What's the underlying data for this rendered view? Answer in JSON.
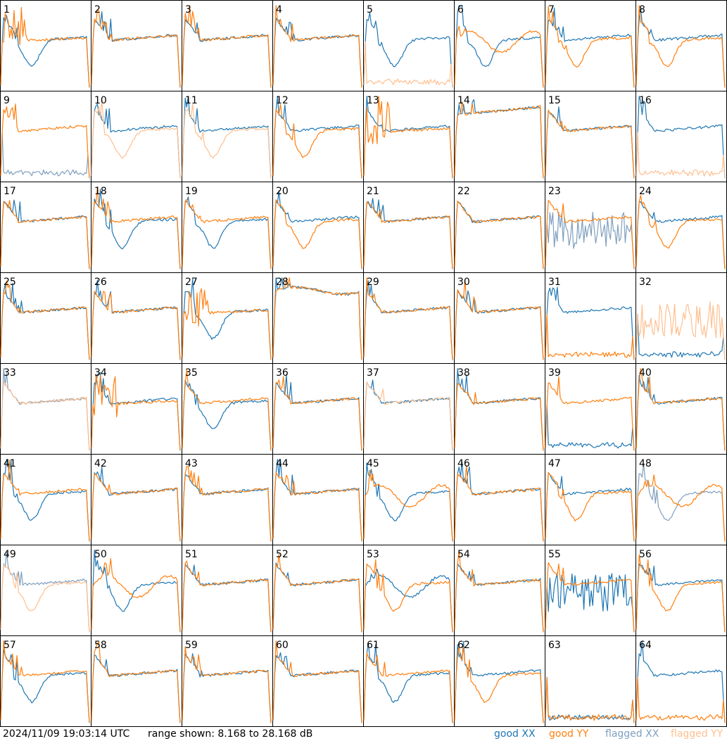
{
  "timestamp": "2024/11/09 19:03:14 UTC",
  "range_text": "range shown: 8.168 to 28.168 dB",
  "legend": {
    "good_xx": "good XX",
    "good_yy": "good YY",
    "flagged_xx": "flagged XX",
    "flagged_yy": "flagged YY"
  },
  "colors": {
    "good_xx": "#1f77b4",
    "good_yy": "#ff7f0e",
    "flagged_xx": "#7f9fbf",
    "flagged_yy": "#ffbf8f",
    "frame": "#000000",
    "background": "#ffffff"
  },
  "chart_data": {
    "type": "line",
    "layout": "8x8 grid of small multiples",
    "range_db": [
      8.168,
      28.168
    ],
    "panels": [
      {
        "label": "1",
        "xx": "good",
        "yy": "good",
        "xx_shape": "dip",
        "yy_shape": "spiky"
      },
      {
        "label": "2",
        "xx": "good",
        "yy": "good",
        "xx_shape": "normal",
        "yy_shape": "normal"
      },
      {
        "label": "3",
        "xx": "good",
        "yy": "good",
        "xx_shape": "normal",
        "yy_shape": "normal"
      },
      {
        "label": "4",
        "xx": "good",
        "yy": "good",
        "xx_shape": "normal",
        "yy_shape": "normal"
      },
      {
        "label": "5",
        "xx": "good",
        "yy": "flagged",
        "xx_shape": "dip",
        "yy_shape": "low"
      },
      {
        "label": "6",
        "xx": "good",
        "yy": "good",
        "xx_shape": "dip",
        "yy_shape": "wave"
      },
      {
        "label": "7",
        "xx": "good",
        "yy": "good",
        "xx_shape": "normal",
        "yy_shape": "dip"
      },
      {
        "label": "8",
        "xx": "good",
        "yy": "good",
        "xx_shape": "normal",
        "yy_shape": "dip"
      },
      {
        "label": "9",
        "xx": "flagged",
        "yy": "good",
        "xx_shape": "low",
        "yy_shape": "normal"
      },
      {
        "label": "10",
        "xx": "good",
        "yy": "flagged",
        "xx_shape": "normal",
        "yy_shape": "dip"
      },
      {
        "label": "11",
        "xx": "good",
        "yy": "flagged",
        "xx_shape": "normal",
        "yy_shape": "dip"
      },
      {
        "label": "12",
        "xx": "good",
        "yy": "good",
        "xx_shape": "normal",
        "yy_shape": "dip"
      },
      {
        "label": "13",
        "xx": "good",
        "yy": "good",
        "xx_shape": "normal",
        "yy_shape": "spiky"
      },
      {
        "label": "14",
        "xx": "good",
        "yy": "good",
        "xx_shape": "high",
        "yy_shape": "high"
      },
      {
        "label": "15",
        "xx": "good",
        "yy": "good",
        "xx_shape": "normal",
        "yy_shape": "normal"
      },
      {
        "label": "16",
        "xx": "good",
        "yy": "flagged",
        "xx_shape": "normal",
        "yy_shape": "low"
      },
      {
        "label": "17",
        "xx": "good",
        "yy": "good",
        "xx_shape": "normal",
        "yy_shape": "normal"
      },
      {
        "label": "18",
        "xx": "good",
        "yy": "good",
        "xx_shape": "dip",
        "yy_shape": "normal"
      },
      {
        "label": "19",
        "xx": "good",
        "yy": "good",
        "xx_shape": "dip",
        "yy_shape": "normal"
      },
      {
        "label": "20",
        "xx": "good",
        "yy": "good",
        "xx_shape": "normal",
        "yy_shape": "dip"
      },
      {
        "label": "21",
        "xx": "good",
        "yy": "good",
        "xx_shape": "normal",
        "yy_shape": "normal"
      },
      {
        "label": "22",
        "xx": "good",
        "yy": "good",
        "xx_shape": "normal",
        "yy_shape": "normal"
      },
      {
        "label": "23",
        "xx": "flagged",
        "yy": "good",
        "xx_shape": "noisy",
        "yy_shape": "normal"
      },
      {
        "label": "24",
        "xx": "good",
        "yy": "good",
        "xx_shape": "normal",
        "yy_shape": "dip"
      },
      {
        "label": "25",
        "xx": "good",
        "yy": "good",
        "xx_shape": "normal",
        "yy_shape": "normal"
      },
      {
        "label": "26",
        "xx": "good",
        "yy": "good",
        "xx_shape": "normal",
        "yy_shape": "normal"
      },
      {
        "label": "27",
        "xx": "good",
        "yy": "good",
        "xx_shape": "dip",
        "yy_shape": "spiky"
      },
      {
        "label": "28",
        "xx": "good",
        "yy": "good",
        "xx_shape": "flat",
        "yy_shape": "flat"
      },
      {
        "label": "29",
        "xx": "good",
        "yy": "good",
        "xx_shape": "normal",
        "yy_shape": "normal"
      },
      {
        "label": "30",
        "xx": "good",
        "yy": "good",
        "xx_shape": "normal",
        "yy_shape": "normal"
      },
      {
        "label": "31",
        "xx": "good",
        "yy": "good",
        "xx_shape": "normal",
        "yy_shape": "low"
      },
      {
        "label": "32",
        "xx": "good",
        "yy": "flagged",
        "xx_shape": "low",
        "yy_shape": "noisy"
      },
      {
        "label": "33",
        "xx": "flagged",
        "yy": "flagged",
        "xx_shape": "normal",
        "yy_shape": "normal"
      },
      {
        "label": "34",
        "xx": "good",
        "yy": "good",
        "xx_shape": "normal",
        "yy_shape": "spiky"
      },
      {
        "label": "35",
        "xx": "good",
        "yy": "good",
        "xx_shape": "dip",
        "yy_shape": "normal"
      },
      {
        "label": "36",
        "xx": "good",
        "yy": "good",
        "xx_shape": "normal",
        "yy_shape": "normal"
      },
      {
        "label": "37",
        "xx": "good",
        "yy": "flagged",
        "xx_shape": "normal",
        "yy_shape": "normal"
      },
      {
        "label": "38",
        "xx": "good",
        "yy": "good",
        "xx_shape": "normal",
        "yy_shape": "normal"
      },
      {
        "label": "39",
        "xx": "good",
        "yy": "good",
        "xx_shape": "low",
        "yy_shape": "normal"
      },
      {
        "label": "40",
        "xx": "good",
        "yy": "good",
        "xx_shape": "normal",
        "yy_shape": "normal"
      },
      {
        "label": "41",
        "xx": "good",
        "yy": "good",
        "xx_shape": "dip",
        "yy_shape": "normal"
      },
      {
        "label": "42",
        "xx": "good",
        "yy": "good",
        "xx_shape": "normal",
        "yy_shape": "normal"
      },
      {
        "label": "43",
        "xx": "good",
        "yy": "good",
        "xx_shape": "normal",
        "yy_shape": "normal"
      },
      {
        "label": "44",
        "xx": "good",
        "yy": "good",
        "xx_shape": "normal",
        "yy_shape": "normal"
      },
      {
        "label": "45",
        "xx": "good",
        "yy": "good",
        "xx_shape": "dip",
        "yy_shape": "wave"
      },
      {
        "label": "46",
        "xx": "good",
        "yy": "good",
        "xx_shape": "normal",
        "yy_shape": "normal"
      },
      {
        "label": "47",
        "xx": "good",
        "yy": "good",
        "xx_shape": "normal",
        "yy_shape": "dip"
      },
      {
        "label": "48",
        "xx": "flagged",
        "yy": "good",
        "xx_shape": "dip",
        "yy_shape": "wave"
      },
      {
        "label": "49",
        "xx": "flagged",
        "yy": "flagged",
        "xx_shape": "normal",
        "yy_shape": "dip"
      },
      {
        "label": "50",
        "xx": "good",
        "yy": "good",
        "xx_shape": "dip",
        "yy_shape": "wave"
      },
      {
        "label": "51",
        "xx": "good",
        "yy": "good",
        "xx_shape": "normal",
        "yy_shape": "normal"
      },
      {
        "label": "52",
        "xx": "good",
        "yy": "good",
        "xx_shape": "normal",
        "yy_shape": "normal"
      },
      {
        "label": "53",
        "xx": "good",
        "yy": "good",
        "xx_shape": "wave",
        "yy_shape": "dip"
      },
      {
        "label": "54",
        "xx": "good",
        "yy": "good",
        "xx_shape": "normal",
        "yy_shape": "normal"
      },
      {
        "label": "55",
        "xx": "good",
        "yy": "good",
        "xx_shape": "noisy",
        "yy_shape": "normal"
      },
      {
        "label": "56",
        "xx": "good",
        "yy": "good",
        "xx_shape": "normal",
        "yy_shape": "dip"
      },
      {
        "label": "57",
        "xx": "good",
        "yy": "good",
        "xx_shape": "dip",
        "yy_shape": "normal"
      },
      {
        "label": "58",
        "xx": "good",
        "yy": "good",
        "xx_shape": "normal",
        "yy_shape": "normal"
      },
      {
        "label": "59",
        "xx": "good",
        "yy": "good",
        "xx_shape": "normal",
        "yy_shape": "normal"
      },
      {
        "label": "60",
        "xx": "good",
        "yy": "good",
        "xx_shape": "normal",
        "yy_shape": "normal"
      },
      {
        "label": "61",
        "xx": "good",
        "yy": "good",
        "xx_shape": "dip",
        "yy_shape": "normal"
      },
      {
        "label": "62",
        "xx": "good",
        "yy": "good",
        "xx_shape": "normal",
        "yy_shape": "dip"
      },
      {
        "label": "63",
        "xx": "good",
        "yy": "good",
        "xx_shape": "low",
        "yy_shape": "low"
      },
      {
        "label": "64",
        "xx": "good",
        "yy": "good",
        "xx_shape": "normal",
        "yy_shape": "low"
      }
    ]
  }
}
